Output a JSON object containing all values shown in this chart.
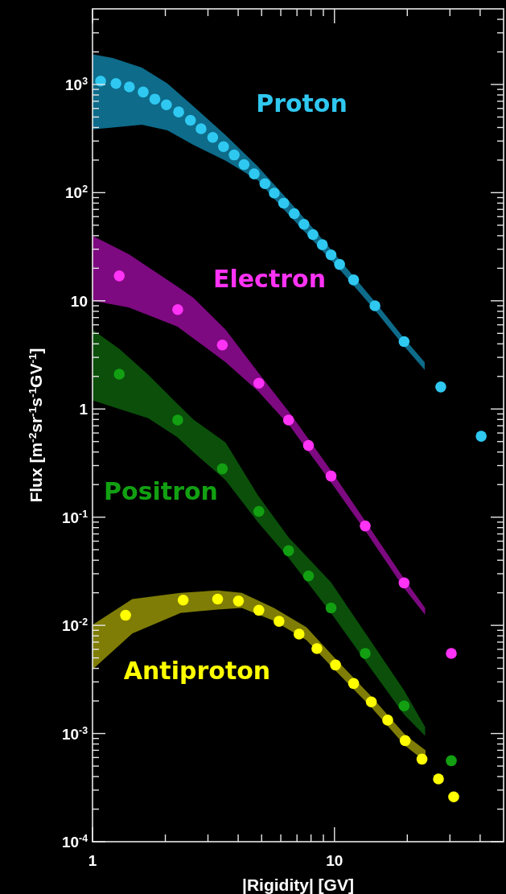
{
  "chart_data": {
    "type": "scatter",
    "xlabel": "|Rigidity| [GV]",
    "ylabel": "Flux [m$^{-2}$sr$^{-1}$s$^{-1}$GV$^{-1}$]",
    "log": "xy",
    "marker": "circle",
    "xlim": [
      1,
      50
    ],
    "ylim": [
      0.0001,
      5000
    ],
    "xticks": [
      1,
      {
        "value": 2,
        "label": null
      },
      {
        "value": 3,
        "label": null
      },
      {
        "value": 4,
        "label": null
      },
      {
        "value": 5,
        "label": null
      },
      {
        "value": 6,
        "label": null
      },
      {
        "value": 7,
        "label": null
      },
      {
        "value": 8,
        "label": null
      },
      {
        "value": 9,
        "label": null
      },
      10,
      {
        "value": 20,
        "label": null
      },
      {
        "value": 30,
        "label": null
      },
      {
        "value": 40,
        "label": null
      }
    ],
    "yticks": [
      {
        "value": 0.0001,
        "label": "10$^{-4}$"
      },
      {
        "value": 0.0002,
        "label": null
      },
      {
        "value": 0.0003,
        "label": null
      },
      {
        "value": 0.0004,
        "label": null
      },
      {
        "value": 0.0005,
        "label": null
      },
      {
        "value": 0.0006,
        "label": null
      },
      {
        "value": 0.0007,
        "label": null
      },
      {
        "value": 0.0008,
        "label": null
      },
      {
        "value": 0.0009,
        "label": null
      },
      {
        "value": 0.001,
        "label": "10$^{-3}$"
      },
      {
        "value": 0.002,
        "label": null
      },
      {
        "value": 0.003,
        "label": null
      },
      {
        "value": 0.004,
        "label": null
      },
      {
        "value": 0.005,
        "label": null
      },
      {
        "value": 0.006,
        "label": null
      },
      {
        "value": 0.007,
        "label": null
      },
      {
        "value": 0.008,
        "label": null
      },
      {
        "value": 0.009,
        "label": null
      },
      {
        "value": 0.01,
        "label": "10$^{-2}$"
      },
      {
        "value": 0.02,
        "label": null
      },
      {
        "value": 0.03,
        "label": null
      },
      {
        "value": 0.04,
        "label": null
      },
      {
        "value": 0.05,
        "label": null
      },
      {
        "value": 0.06,
        "label": null
      },
      {
        "value": 0.07,
        "label": null
      },
      {
        "value": 0.08,
        "label": null
      },
      {
        "value": 0.09,
        "label": null
      },
      {
        "value": 0.1,
        "label": "10$^{-1}$"
      },
      {
        "value": 0.2,
        "label": null
      },
      {
        "value": 0.3,
        "label": null
      },
      {
        "value": 0.4,
        "label": null
      },
      {
        "value": 0.5,
        "label": null
      },
      {
        "value": 0.6,
        "label": null
      },
      {
        "value": 0.7,
        "label": null
      },
      {
        "value": 0.8,
        "label": null
      },
      {
        "value": 0.9,
        "label": null
      },
      1,
      {
        "value": 2,
        "label": null
      },
      {
        "value": 3,
        "label": null
      },
      {
        "value": 4,
        "label": null
      },
      {
        "value": 5,
        "label": null
      },
      {
        "value": 6,
        "label": null
      },
      {
        "value": 7,
        "label": null
      },
      {
        "value": 8,
        "label": null
      },
      {
        "value": 9,
        "label": null
      },
      10,
      {
        "value": 20,
        "label": null
      },
      {
        "value": 30,
        "label": null
      },
      {
        "value": 40,
        "label": null
      },
      {
        "value": 50,
        "label": null
      },
      {
        "value": 60,
        "label": null
      },
      {
        "value": 70,
        "label": null
      },
      {
        "value": 80,
        "label": null
      },
      {
        "value": 90,
        "label": null
      },
      {
        "value": 100,
        "label": "10$^{2}$"
      },
      {
        "value": 200,
        "label": null
      },
      {
        "value": 300,
        "label": null
      },
      {
        "value": 400,
        "label": null
      },
      {
        "value": 500,
        "label": null
      },
      {
        "value": 600,
        "label": null
      },
      {
        "value": 700,
        "label": null
      },
      {
        "value": 800,
        "label": null
      },
      {
        "value": 900,
        "label": null
      },
      {
        "value": 1000,
        "label": "10$^{3}$"
      },
      {
        "value": 2000,
        "label": null
      },
      {
        "value": 3000,
        "label": null
      },
      {
        "value": 4000,
        "label": null
      }
    ],
    "series": [
      {
        "type": "area",
        "color": "#0e6b8a",
        "x": [
          1,
          1.21,
          1.6,
          2.04,
          2.61,
          3.55,
          4.82,
          6.17,
          8.15,
          10.5,
          14.7,
          19.4,
          23.6
        ],
        "values": [
          null,
          null,
          null,
          null,
          null,
          null,
          null,
          null,
          null,
          null,
          null,
          null,
          null
        ],
        "lower": [
          385,
          400,
          424,
          377,
          277,
          197,
          130,
          70,
          36,
          19.5,
          8.2,
          3.8,
          2.3
        ],
        "upper": [
          1900,
          1760,
          1430,
          1020,
          630,
          340,
          175,
          95,
          47,
          24,
          9.8,
          4.5,
          2.7
        ]
      },
      {
        "type": "area",
        "color": "#7d0a80",
        "x": [
          1,
          1.41,
          2.24,
          2.61,
          3.55,
          4.82,
          6.56,
          9.68,
          13.4,
          19.4,
          23.7
        ],
        "values": [
          null,
          null,
          null,
          null,
          null,
          null,
          null,
          null,
          null,
          null,
          null
        ],
        "lower": [
          10,
          8.7,
          5.8,
          4.5,
          2.7,
          1.47,
          0.69,
          0.21,
          0.075,
          0.022,
          0.0125
        ],
        "upper": [
          40,
          27,
          13.6,
          10.7,
          5.4,
          2.2,
          0.91,
          0.27,
          0.092,
          0.027,
          0.0145
        ]
      },
      {
        "type": "area",
        "color": "#0b4f0b",
        "x": [
          1,
          1.29,
          1.7,
          2.24,
          2.61,
          3.55,
          4.82,
          6.46,
          9.68,
          13.4,
          19.4,
          23.7
        ],
        "values": [
          null,
          null,
          null,
          null,
          null,
          null,
          null,
          null,
          null,
          null,
          null,
          null
        ],
        "lower": [
          1.2,
          1.0,
          0.82,
          0.55,
          0.4,
          0.22,
          0.09,
          0.042,
          0.013,
          0.0047,
          0.0015,
          0.00095
        ],
        "upper": [
          5.4,
          3.6,
          2.07,
          1.12,
          0.8,
          0.49,
          0.16,
          0.065,
          0.025,
          0.0085,
          0.0025,
          0.00115
        ]
      },
      {
        "type": "area",
        "color": "#7f7d05",
        "x": [
          1,
          1.46,
          2.31,
          3.29,
          4.14,
          5.62,
          7.66,
          10.1,
          14.2,
          19.6,
          23.8
        ],
        "values": [
          null,
          null,
          null,
          null,
          null,
          null,
          null,
          null,
          null,
          null,
          null
        ],
        "lower": [
          0.0039,
          0.0084,
          0.013,
          0.014,
          0.0145,
          0.011,
          0.0073,
          0.0038,
          0.00175,
          0.00077,
          0.00055
        ],
        "upper": [
          0.0101,
          0.0175,
          0.02,
          0.021,
          0.02,
          0.0145,
          0.0096,
          0.0049,
          0.0022,
          0.00097,
          0.0007
        ]
      },
      {
        "name": "Proton",
        "color": "#2fc8f0",
        "x": [
          1.08,
          1.25,
          1.42,
          1.62,
          1.81,
          2.02,
          2.27,
          2.54,
          2.81,
          3.14,
          3.48,
          3.85,
          4.23,
          4.66,
          5.16,
          5.64,
          6.17,
          6.82,
          7.48,
          8.15,
          8.91,
          9.68,
          10.5,
          12.0,
          14.7,
          19.4,
          27.5,
          40.4
        ],
        "values": [
          1075,
          1020,
          950,
          851,
          732,
          648,
          557,
          466,
          390,
          324,
          266,
          223,
          182,
          149,
          121,
          99,
          80,
          64,
          51,
          41,
          33,
          26.6,
          21.7,
          15.6,
          9,
          4.2,
          1.6,
          0.56
        ]
      },
      {
        "name": "Electron",
        "color": "#ff33f5",
        "x": [
          1.29,
          2.25,
          3.44,
          4.87,
          6.46,
          7.81,
          9.68,
          13.4,
          19.4,
          30.4
        ],
        "values": [
          17,
          8.3,
          3.9,
          1.73,
          0.79,
          0.46,
          0.24,
          0.083,
          0.0247,
          0.0055
        ]
      },
      {
        "name": "Positron",
        "color": "#12a012",
        "x": [
          1.29,
          2.25,
          3.44,
          4.87,
          6.46,
          7.81,
          9.68,
          13.4,
          19.4,
          30.4
        ],
        "values": [
          2.1,
          0.79,
          0.28,
          0.113,
          0.049,
          0.0286,
          0.0145,
          0.0055,
          0.0018,
          0.00056
        ]
      },
      {
        "name": "Antiproton",
        "color": "#ffff00",
        "x": [
          1.37,
          2.37,
          3.29,
          4.01,
          4.87,
          5.9,
          7.14,
          8.46,
          10.1,
          12.0,
          14.2,
          16.6,
          19.6,
          23.0,
          26.9,
          31.1
        ],
        "values": [
          0.0124,
          0.0171,
          0.0175,
          0.0168,
          0.0138,
          0.0109,
          0.0083,
          0.0061,
          0.0043,
          0.0029,
          0.00196,
          0.00133,
          0.00086,
          0.00058,
          0.00038,
          0.00026
        ]
      }
    ]
  }
}
